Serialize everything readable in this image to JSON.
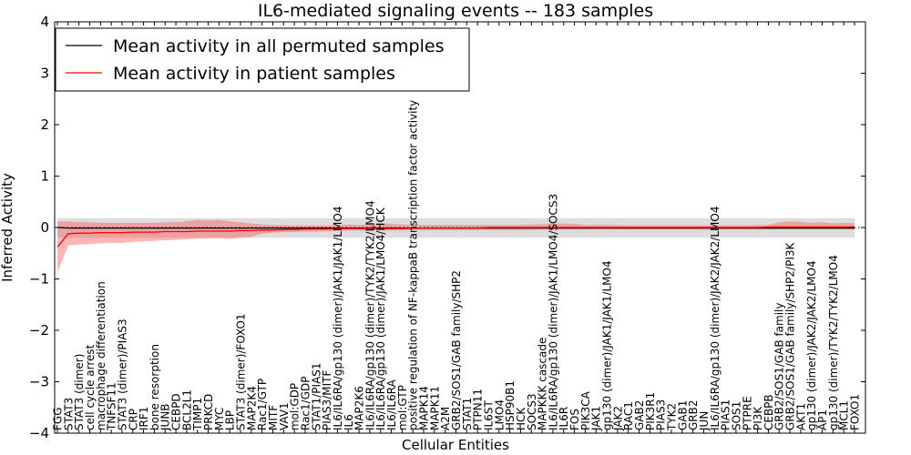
{
  "chart_data": {
    "type": "line",
    "title": "IL6-mediated signaling events -- 183 samples",
    "xlabel": "Cellular Entities",
    "ylabel": "Inferred Activity",
    "ylim": [
      -4,
      4
    ],
    "yticks": [
      -4,
      -3,
      -2,
      -1,
      0,
      1,
      2,
      3,
      4
    ],
    "legend": {
      "placement": "top-left",
      "entries": [
        {
          "label": "Mean activity in all permuted samples",
          "color": "#000000"
        },
        {
          "label": "Mean activity in patient samples",
          "color": "#ff0000"
        }
      ]
    },
    "categories": [
      "FGG",
      "STAT3",
      "STAT3 (dimer)",
      "cell cycle arrest",
      "macrophage differentiation",
      "TNFSF11",
      "STAT3 (dimer)/PIAS3",
      "CRP",
      "IRF1",
      "bone resorption",
      "JUNB",
      "CEBPD",
      "BCL2L1",
      "TIMP1",
      "PRKCD",
      "MYC",
      "LBP",
      "STAT3 (dimer)/FOXO1",
      "MAP2K4",
      "Rac1/GTP",
      "MITF",
      "VAV1",
      "mol:GDP",
      "Rac1/GDP",
      "STAT1/PIAS1",
      "PIAS3/MITF",
      "IL6/IL6RA/gp130 (dimer)/JAK1/JAK1/LMO4",
      "IL6",
      "MAP2K6",
      "IL6/IL6RA/gp130 (dimer)/TYK2/TYK2/LMO4",
      "IL6/IL6RA/gp130 (dimer)/JAK1/LMO4/HCK",
      "IL6/IL6RA",
      "mol:GTP",
      "positive regulation of NF-kappaB transcription factor activity",
      "MAPK14",
      "MAPK11",
      "A2M",
      "GRB2/SOS1/GAB family/SHP2",
      "STAT1",
      "PTPN11",
      "IL6ST",
      "LMO4",
      "HSP90B1",
      "HCK",
      "SOCS3",
      "MAPKKK cascade",
      "IL6/IL6RA/gp130 (dimer)/JAK1/LMO4/SOCS3",
      "IL6R",
      "FOS",
      "PIK3CA",
      "JAK1",
      "gp130 (dimer)/JAK1/JAK1/LMO4",
      "JAK2",
      "RAC1",
      "GAB2",
      "PIK3R1",
      "PIAS3",
      "TYK2",
      "GAB1",
      "GRB2",
      "JUN",
      "IL6/IL6RA/gp130 (dimer)/JAK2/JAK2/LMO4",
      "PIAS1",
      "SOS1",
      "PTPRE",
      "PI3K",
      "CEBPB",
      "GRB2/SOS1/GAB family",
      "GRB2/SOS1/GAB family/SHP2/PI3K",
      "AKT1",
      "gp130 (dimer)/JAK2/JAK2/LMO4",
      "AP1",
      "gp130 (dimer)/TYK2/TYK2/LMO4",
      "MCL1",
      "FOXO1"
    ],
    "series": [
      {
        "name": "Mean activity in all permuted samples",
        "values": [
          0,
          -0.01,
          -0.01,
          -0.01,
          -0.01,
          -0.01,
          -0.01,
          -0.01,
          -0.01,
          -0.01,
          -0.01,
          -0.01,
          -0.01,
          -0.01,
          -0.01,
          -0.01,
          -0.01,
          -0.01,
          -0.01,
          -0.01,
          -0.01,
          -0.01,
          -0.01,
          -0.01,
          -0.01,
          -0.01,
          -0.01,
          -0.01,
          -0.01,
          -0.01,
          -0.01,
          -0.01,
          -0.01,
          -0.01,
          -0.01,
          -0.01,
          -0.01,
          -0.01,
          -0.01,
          -0.01,
          -0.01,
          -0.01,
          -0.01,
          -0.01,
          -0.01,
          -0.01,
          -0.01,
          -0.01,
          -0.01,
          -0.01,
          -0.01,
          -0.01,
          -0.01,
          -0.01,
          -0.01,
          -0.01,
          -0.01,
          -0.01,
          -0.01,
          -0.01,
          -0.01,
          -0.01,
          -0.01,
          -0.01,
          -0.01,
          -0.01,
          -0.01,
          -0.01,
          -0.01,
          -0.01,
          -0.01,
          -0.01,
          -0.01,
          -0.01,
          -0.01
        ],
        "lower": [
          -0.2,
          -0.2,
          -0.2,
          -0.2,
          -0.2,
          -0.2,
          -0.2,
          -0.2,
          -0.2,
          -0.2,
          -0.2,
          -0.2,
          -0.2,
          -0.2,
          -0.2,
          -0.2,
          -0.2,
          -0.2,
          -0.2,
          -0.2,
          -0.2,
          -0.2,
          -0.2,
          -0.2,
          -0.2,
          -0.2,
          -0.2,
          -0.2,
          -0.2,
          -0.2,
          -0.2,
          -0.2,
          -0.2,
          -0.2,
          -0.2,
          -0.2,
          -0.2,
          -0.2,
          -0.2,
          -0.2,
          -0.2,
          -0.2,
          -0.2,
          -0.2,
          -0.2,
          -0.2,
          -0.2,
          -0.2,
          -0.2,
          -0.2,
          -0.2,
          -0.2,
          -0.2,
          -0.2,
          -0.2,
          -0.2,
          -0.2,
          -0.2,
          -0.2,
          -0.2,
          -0.2,
          -0.2,
          -0.2,
          -0.2,
          -0.2,
          -0.2,
          -0.2,
          -0.2,
          -0.2,
          -0.2,
          -0.2,
          -0.2,
          -0.2,
          -0.2,
          -0.2
        ],
        "upper": [
          0.18,
          0.18,
          0.18,
          0.18,
          0.18,
          0.18,
          0.18,
          0.18,
          0.18,
          0.18,
          0.18,
          0.18,
          0.18,
          0.18,
          0.18,
          0.18,
          0.18,
          0.18,
          0.18,
          0.18,
          0.18,
          0.18,
          0.18,
          0.18,
          0.18,
          0.18,
          0.18,
          0.18,
          0.18,
          0.18,
          0.18,
          0.18,
          0.18,
          0.18,
          0.18,
          0.18,
          0.18,
          0.18,
          0.18,
          0.18,
          0.18,
          0.18,
          0.18,
          0.18,
          0.18,
          0.18,
          0.18,
          0.18,
          0.18,
          0.18,
          0.18,
          0.18,
          0.18,
          0.18,
          0.18,
          0.18,
          0.18,
          0.18,
          0.18,
          0.18,
          0.18,
          0.18,
          0.18,
          0.18,
          0.18,
          0.18,
          0.18,
          0.18,
          0.18,
          0.18,
          0.18,
          0.18,
          0.18,
          0.18,
          0.18
        ]
      },
      {
        "name": "Mean activity in patient samples",
        "values": [
          -0.38,
          -0.12,
          -0.11,
          -0.11,
          -0.1,
          -0.1,
          -0.1,
          -0.09,
          -0.09,
          -0.09,
          -0.08,
          -0.08,
          -0.08,
          -0.07,
          -0.07,
          -0.07,
          -0.07,
          -0.06,
          -0.06,
          -0.05,
          -0.05,
          -0.04,
          -0.04,
          -0.03,
          -0.03,
          -0.03,
          -0.02,
          -0.02,
          -0.02,
          -0.02,
          -0.02,
          -0.02,
          -0.02,
          -0.01,
          -0.01,
          -0.01,
          -0.01,
          -0.01,
          -0.01,
          -0.01,
          0,
          0,
          0,
          0,
          0,
          0,
          0,
          0,
          0,
          0,
          0,
          0,
          0,
          0,
          0,
          0,
          0,
          0,
          0,
          0,
          0,
          0,
          0,
          0,
          0,
          0,
          0.01,
          0.01,
          0.01,
          0.01,
          0.01,
          0.01,
          0.01,
          0.01,
          0.01
        ],
        "lower": [
          -0.88,
          -0.35,
          -0.33,
          -0.32,
          -0.31,
          -0.3,
          -0.3,
          -0.28,
          -0.27,
          -0.26,
          -0.25,
          -0.24,
          -0.23,
          -0.22,
          -0.21,
          -0.21,
          -0.22,
          -0.2,
          -0.18,
          -0.12,
          -0.1,
          -0.09,
          -0.09,
          -0.08,
          -0.08,
          -0.07,
          -0.07,
          -0.06,
          -0.06,
          -0.06,
          -0.06,
          -0.06,
          -0.06,
          -0.05,
          -0.05,
          -0.05,
          -0.05,
          -0.05,
          -0.05,
          -0.05,
          -0.05,
          -0.05,
          -0.05,
          -0.05,
          -0.05,
          -0.04,
          -0.04,
          -0.04,
          -0.04,
          -0.04,
          -0.04,
          -0.04,
          -0.04,
          -0.04,
          -0.04,
          -0.04,
          -0.04,
          -0.04,
          -0.04,
          -0.04,
          -0.04,
          -0.04,
          -0.04,
          -0.04,
          -0.04,
          -0.04,
          -0.04,
          -0.04,
          -0.04,
          -0.04,
          -0.04,
          -0.04,
          -0.04,
          -0.04,
          -0.04
        ],
        "upper": [
          0.12,
          0.12,
          0.1,
          0.1,
          0.09,
          0.09,
          0.09,
          0.09,
          0.09,
          0.09,
          0.1,
          0.1,
          0.12,
          0.15,
          0.14,
          0.15,
          0.12,
          0.1,
          0.08,
          0.06,
          0.05,
          0.05,
          0.04,
          0.04,
          0.04,
          0.04,
          0.05,
          0.06,
          0.05,
          0.06,
          0.08,
          0.07,
          0.06,
          0.05,
          0.05,
          0.05,
          0.05,
          0.05,
          0.05,
          0.05,
          0.05,
          0.05,
          0.05,
          0.05,
          0.06,
          0.06,
          0.08,
          0.08,
          0.07,
          0.05,
          0.05,
          0.05,
          0.05,
          0.04,
          0.04,
          0.04,
          0.04,
          0.04,
          0.04,
          0.04,
          0.04,
          0.04,
          0.04,
          0.04,
          0.04,
          0.05,
          0.05,
          0.1,
          0.12,
          0.11,
          0.09,
          0.1,
          0.08,
          0.09,
          0.08
        ]
      }
    ]
  }
}
